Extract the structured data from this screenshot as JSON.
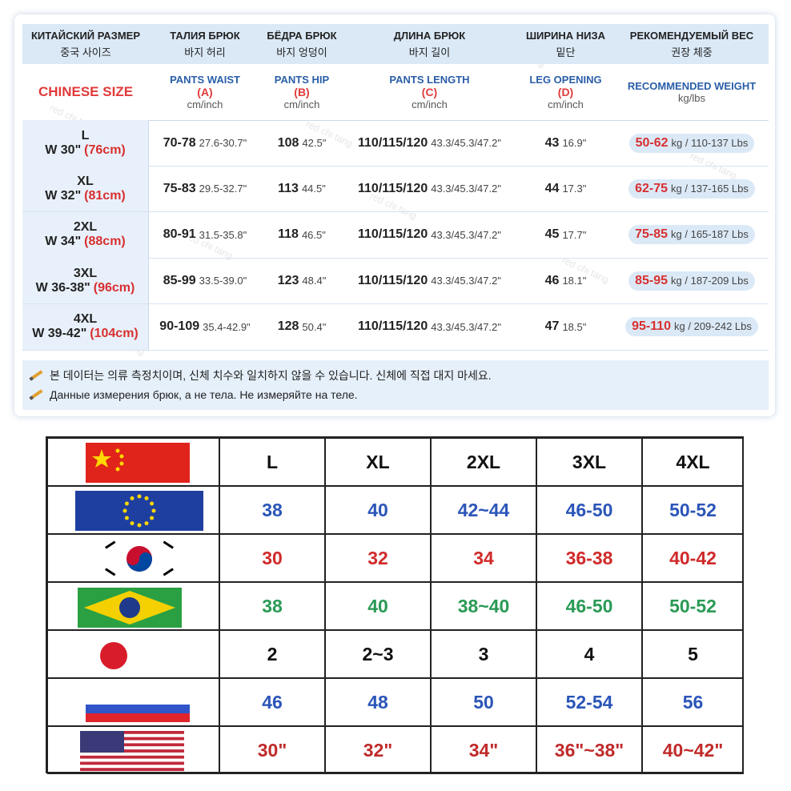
{
  "watermark": "red chi tang",
  "size_chart": {
    "headers": [
      {
        "ru": "КИТАЙСКИЙ РАЗМЕР",
        "ko": "중국 사이즈"
      },
      {
        "ru": "ТАЛИЯ БРЮК",
        "ko": "바지 허리"
      },
      {
        "ru": "БЁДРА БРЮК",
        "ko": "바지 엉덩이"
      },
      {
        "ru": "ДЛИНА БРЮК",
        "ko": "바지 길이"
      },
      {
        "ru": "ШИРИНА НИЗА",
        "ko": "밑단"
      },
      {
        "ru": "РЕКОМЕНДУЕМЫЙ ВЕС",
        "ko": "권장 체중"
      }
    ],
    "size_label": "CHINESE SIZE",
    "measures": [
      {
        "name": "PANTS WAIST",
        "code": "(A)",
        "unit": "cm/inch"
      },
      {
        "name": "PANTS HIP",
        "code": "(B)",
        "unit": "cm/inch"
      },
      {
        "name": "PANTS LENGTH",
        "code": "(C)",
        "unit": "cm/inch"
      },
      {
        "name": "LEG OPENING",
        "code": "(D)",
        "unit": "cm/inch"
      },
      {
        "name": "RECOMMENDED WEIGHT",
        "unit": "kg/lbs"
      }
    ],
    "rows": [
      {
        "size": "L",
        "waist": "W 30\"",
        "waist_cm": "(76cm)",
        "cells": [
          [
            "70-78",
            "27.6-30.7\""
          ],
          [
            "108",
            "42.5\""
          ],
          [
            "110/115/120",
            "43.3/45.3/47.2\""
          ],
          [
            "43",
            "16.9\""
          ]
        ],
        "weight": [
          "50-62",
          "kg / 110-137 Lbs"
        ]
      },
      {
        "size": "XL",
        "waist": "W 32\"",
        "waist_cm": "(81cm)",
        "cells": [
          [
            "75-83",
            "29.5-32.7\""
          ],
          [
            "113",
            "44.5\""
          ],
          [
            "110/115/120",
            "43.3/45.3/47.2\""
          ],
          [
            "44",
            "17.3\""
          ]
        ],
        "weight": [
          "62-75",
          "kg / 137-165 Lbs"
        ]
      },
      {
        "size": "2XL",
        "waist": "W 34\"",
        "waist_cm": "(88cm)",
        "cells": [
          [
            "80-91",
            "31.5-35.8\""
          ],
          [
            "118",
            "46.5\""
          ],
          [
            "110/115/120",
            "43.3/45.3/47.2\""
          ],
          [
            "45",
            "17.7\""
          ]
        ],
        "weight": [
          "75-85",
          "kg / 165-187 Lbs"
        ]
      },
      {
        "size": "3XL",
        "waist": "W 36-38\"",
        "waist_cm": "(96cm)",
        "cells": [
          [
            "85-99",
            "33.5-39.0\""
          ],
          [
            "123",
            "48.4\""
          ],
          [
            "110/115/120",
            "43.3/45.3/47.2\""
          ],
          [
            "46",
            "18.1\""
          ]
        ],
        "weight": [
          "85-95",
          "kg / 187-209 Lbs"
        ]
      },
      {
        "size": "4XL",
        "waist": "W 39-42\"",
        "waist_cm": "(104cm)",
        "cells": [
          [
            "90-109",
            "35.4-42.9\""
          ],
          [
            "128",
            "50.4\""
          ],
          [
            "110/115/120",
            "43.3/45.3/47.2\""
          ],
          [
            "47",
            "18.5\""
          ]
        ],
        "weight": [
          "95-110",
          "kg / 209-242 Lbs"
        ]
      }
    ],
    "notes": [
      "본 데이터는 의류 측정치이며, 신체 치수와 일치하지 않을 수 있습니다. 신체에 직접 대지 마세요.",
      "Данные измерения брюк, а не тела. Не измеряйте на теле."
    ]
  },
  "conversion": {
    "sizes": [
      "L",
      "XL",
      "2XL",
      "3XL",
      "4XL"
    ],
    "rows": [
      {
        "flag": "eu",
        "color": "#2b55b8",
        "values": [
          "38",
          "40",
          "42~44",
          "46-50",
          "50-52"
        ]
      },
      {
        "flag": "kr",
        "color": "#d02a2a",
        "values": [
          "30",
          "32",
          "34",
          "36-38",
          "40-42"
        ]
      },
      {
        "flag": "br",
        "color": "#2a9a55",
        "values": [
          "38",
          "40",
          "38~40",
          "46-50",
          "50-52"
        ]
      },
      {
        "flag": "jp",
        "color": "#111111",
        "values": [
          "2",
          "2~3",
          "3",
          "4",
          "5"
        ]
      },
      {
        "flag": "ru",
        "color": "#2b55b8",
        "values": [
          "46",
          "48",
          "50",
          "52-54",
          "56"
        ]
      },
      {
        "flag": "us",
        "color": "#c02a2a",
        "values": [
          "30\"",
          "32\"",
          "34\"",
          "36\"~38\"",
          "40~42\""
        ]
      }
    ]
  }
}
